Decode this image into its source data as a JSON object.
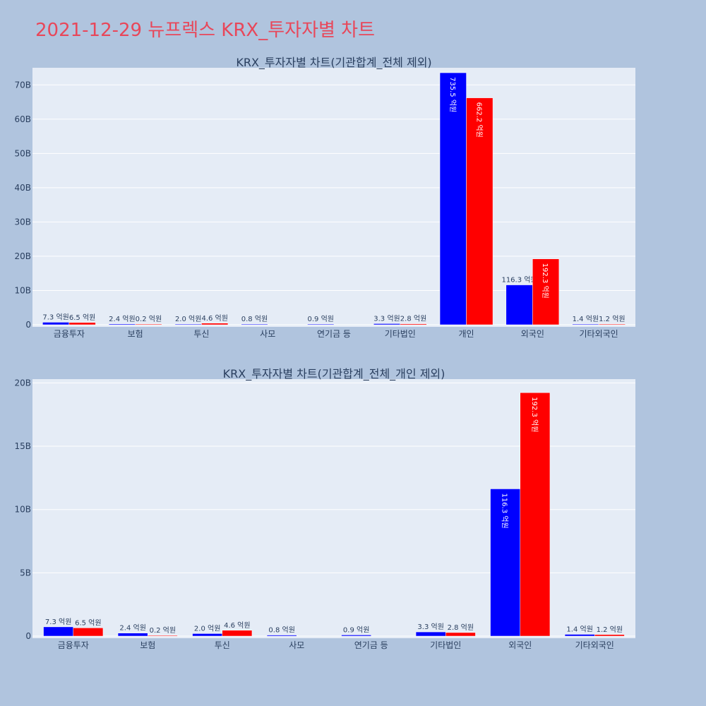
{
  "page": {
    "title": "2021-12-29 뉴프렉스 KRX_투자자별 차트",
    "background": "#b0c4de",
    "plot_background": "#e5ecf6",
    "title_color": "#e8475a"
  },
  "colors": {
    "series1": "#0000ff",
    "series2": "#ff0000"
  },
  "chart_data": [
    {
      "type": "bar",
      "title": "KRX_투자자별 차트(기관합계_전체 제외)",
      "categories": [
        "금융투자",
        "보험",
        "투신",
        "사모",
        "연기금 등",
        "기타법인",
        "개인",
        "외국인",
        "기타외국인"
      ],
      "ylim": [
        0,
        75
      ],
      "yticks": [
        0,
        10,
        20,
        30,
        40,
        50,
        60,
        70
      ],
      "ytick_labels": [
        "0",
        "10B",
        "20B",
        "30B",
        "40B",
        "50B",
        "60B",
        "70B"
      ],
      "grid": true,
      "series": [
        {
          "color": "#0000ff",
          "values": [
            0.73,
            0.24,
            0.2,
            0.08,
            0.09,
            0.33,
            73.55,
            11.63,
            0.14
          ],
          "labels": [
            "7.3 억원",
            "2.4 억원",
            "2.0 억원",
            "0.8 억원",
            "0.9 억원",
            "3.3 억원",
            "735.5 억원",
            "116.3 억원",
            "1.4 억원"
          ]
        },
        {
          "color": "#ff0000",
          "values": [
            0.65,
            0.02,
            0.46,
            0,
            0,
            0.28,
            66.22,
            19.23,
            0.12
          ],
          "labels": [
            "6.5 억원",
            "0.2 억원",
            "4.6 억원",
            "",
            "",
            "2.8 억원",
            "662.2 억원",
            "192.3 억원",
            "1.2 억원"
          ]
        }
      ]
    },
    {
      "type": "bar",
      "title": "KRX_투자자별 차트(기관합계_전체_개인 제외)",
      "categories": [
        "금융투자",
        "보험",
        "투신",
        "사모",
        "연기금 등",
        "기타법인",
        "외국인",
        "기타외국인"
      ],
      "ylim": [
        0,
        20.3
      ],
      "yticks": [
        0,
        5,
        10,
        15,
        20
      ],
      "ytick_labels": [
        "0",
        "5B",
        "10B",
        "15B",
        "20B"
      ],
      "grid": true,
      "series": [
        {
          "color": "#0000ff",
          "values": [
            0.73,
            0.24,
            0.2,
            0.08,
            0.09,
            0.33,
            11.63,
            0.14
          ],
          "labels": [
            "7.3 억원",
            "2.4 억원",
            "2.0 억원",
            "0.8 억원",
            "0.9 억원",
            "3.3 억원",
            "116.3 억원",
            "1.4 억원"
          ]
        },
        {
          "color": "#ff0000",
          "values": [
            0.65,
            0.02,
            0.46,
            0,
            0,
            0.28,
            19.23,
            0.12
          ],
          "labels": [
            "6.5 억원",
            "0.2 억원",
            "4.6 억원",
            "",
            "",
            "2.8 억원",
            "192.3 억원",
            "1.2 억원"
          ]
        }
      ]
    }
  ]
}
